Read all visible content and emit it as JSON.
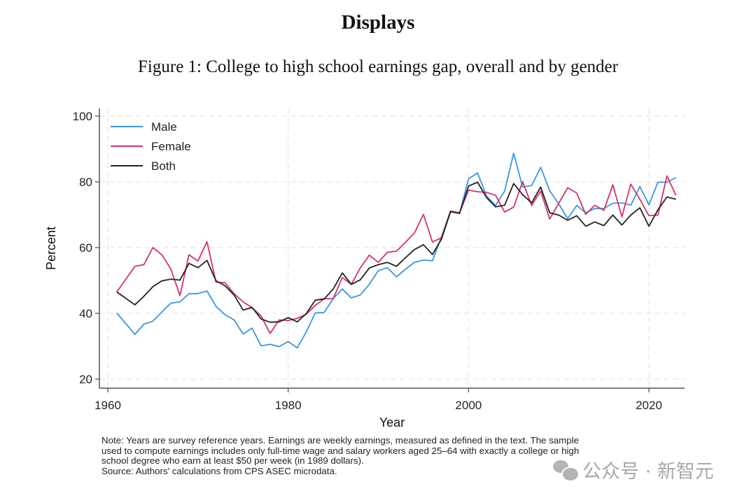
{
  "page": {
    "heading": "Displays",
    "figure_title": "Figure 1: College to high school earnings gap, overall and by gender",
    "note_lines": [
      "Note: Years are survey reference years. Earnings are weekly earnings, measured as defined in the text. The sample",
      "used to compute earnings includes only full-time wage and salary workers aged 25–64 with exactly a college or high",
      "school degree who earn at least $50 per week (in 1989 dollars).",
      "Source: Authors' calculations from CPS ASEC microdata."
    ],
    "watermark": "公众号 · 新智元"
  },
  "chart_data": {
    "type": "line",
    "title": "College to high school earnings gap, overall and by gender",
    "xlabel": "Year",
    "ylabel": "Percent",
    "xlim": [
      1960,
      2024
    ],
    "ylim": [
      20,
      100
    ],
    "xticks": [
      1960,
      1980,
      2000,
      2020
    ],
    "yticks": [
      20,
      40,
      60,
      80,
      100
    ],
    "grid": true,
    "legend_position": "top-left",
    "x": [
      1961,
      1963,
      1964,
      1965,
      1966,
      1967,
      1968,
      1969,
      1970,
      1971,
      1972,
      1973,
      1974,
      1975,
      1976,
      1977,
      1978,
      1979,
      1980,
      1981,
      1982,
      1983,
      1984,
      1985,
      1986,
      1987,
      1988,
      1989,
      1990,
      1991,
      1992,
      1993,
      1994,
      1995,
      1996,
      1997,
      1998,
      1999,
      2000,
      2001,
      2002,
      2003,
      2004,
      2005,
      2006,
      2007,
      2008,
      2009,
      2010,
      2011,
      2012,
      2013,
      2014,
      2015,
      2016,
      2017,
      2018,
      2019,
      2020,
      2021,
      2022,
      2023
    ],
    "series": [
      {
        "name": "Male",
        "color": "#3a96e0",
        "values": [
          40.1,
          33.6,
          36.7,
          37.6,
          40.4,
          43.1,
          43.5,
          46.0,
          46.0,
          46.8,
          42.1,
          39.6,
          38.0,
          33.7,
          35.5,
          30.1,
          30.6,
          29.9,
          31.4,
          29.5,
          34.3,
          40.1,
          40.3,
          44.5,
          47.4,
          44.7,
          45.6,
          48.8,
          53.0,
          53.9,
          51.1,
          53.4,
          55.5,
          56.2,
          56.0,
          63.3,
          71.1,
          70.4,
          80.9,
          82.7,
          75.7,
          72.8,
          77.2,
          88.7,
          78.4,
          78.9,
          84.4,
          77.3,
          73.3,
          68.8,
          72.8,
          70.6,
          71.9,
          71.9,
          73.5,
          73.6,
          72.9,
          78.6,
          73.0,
          79.9,
          79.9,
          81.3
        ]
      },
      {
        "name": "Female",
        "color": "#d6326b",
        "values": [
          46.5,
          54.3,
          54.8,
          60.0,
          57.8,
          53.4,
          45.4,
          57.8,
          55.9,
          61.8,
          49.5,
          49.3,
          46.0,
          43.5,
          41.7,
          39.2,
          33.9,
          38.0,
          37.8,
          38.5,
          39.7,
          42.4,
          44.4,
          44.5,
          50.9,
          48.8,
          53.8,
          57.7,
          55.5,
          58.6,
          58.9,
          61.6,
          64.4,
          70.1,
          61.7,
          63.0,
          71.1,
          70.6,
          77.5,
          77.0,
          76.8,
          75.9,
          70.8,
          72.3,
          80.1,
          72.8,
          77.2,
          68.7,
          73.5,
          78.2,
          76.6,
          70.1,
          72.9,
          71.3,
          79.1,
          69.4,
          79.3,
          74.7,
          69.7,
          69.9,
          81.8,
          75.9
        ]
      },
      {
        "name": "Both",
        "color": "#222222",
        "values": [
          46.5,
          42.6,
          45.2,
          48.1,
          49.9,
          50.4,
          50.1,
          55.2,
          53.9,
          56.1,
          49.9,
          48.4,
          45.6,
          41.0,
          41.8,
          38.3,
          37.3,
          37.4,
          38.7,
          37.4,
          39.9,
          44.0,
          44.4,
          47.4,
          52.3,
          48.8,
          50.2,
          53.8,
          54.8,
          55.5,
          54.3,
          56.9,
          59.4,
          60.9,
          57.9,
          62.6,
          70.9,
          70.4,
          78.7,
          79.9,
          75.2,
          72.4,
          72.9,
          79.5,
          76.1,
          73.6,
          78.4,
          70.6,
          69.9,
          68.3,
          69.7,
          66.5,
          67.8,
          66.7,
          69.9,
          66.9,
          69.9,
          72.1,
          66.5,
          71.5,
          75.4,
          74.7
        ]
      }
    ]
  }
}
